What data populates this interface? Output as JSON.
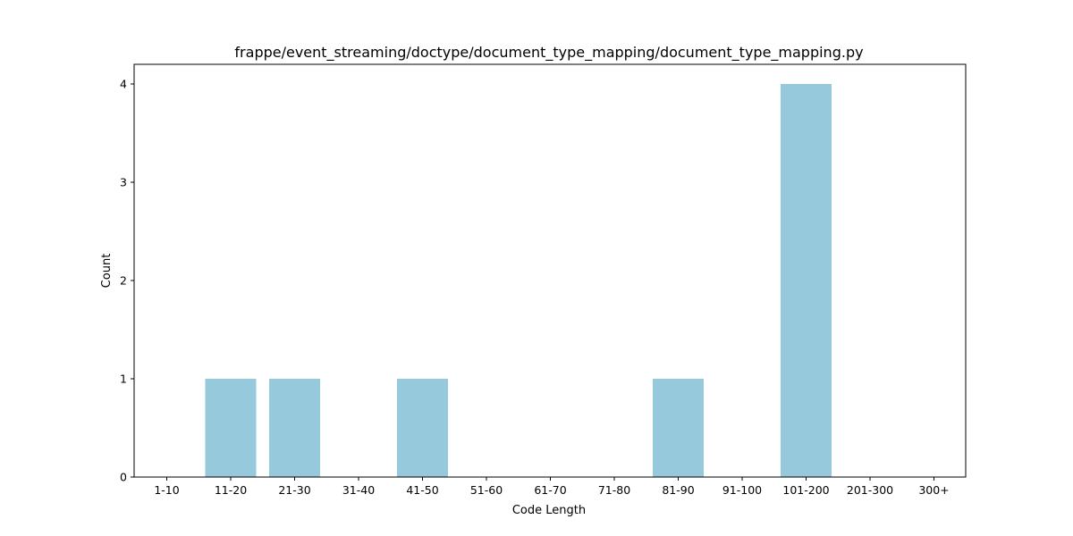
{
  "chart_data": {
    "type": "bar",
    "title": "frappe/event_streaming/doctype/document_type_mapping/document_type_mapping.py",
    "xlabel": "Code Length",
    "ylabel": "Count",
    "categories": [
      "1-10",
      "11-20",
      "21-30",
      "31-40",
      "41-50",
      "51-60",
      "61-70",
      "71-80",
      "81-90",
      "91-100",
      "101-200",
      "201-300",
      "300+"
    ],
    "values": [
      0,
      1,
      1,
      0,
      1,
      0,
      0,
      0,
      1,
      0,
      4,
      0,
      0
    ],
    "yticks": [
      "0",
      "1",
      "2",
      "3",
      "4"
    ],
    "ylim": [
      0,
      4.2
    ],
    "grid": false,
    "bar_color": "#96c9dc"
  }
}
